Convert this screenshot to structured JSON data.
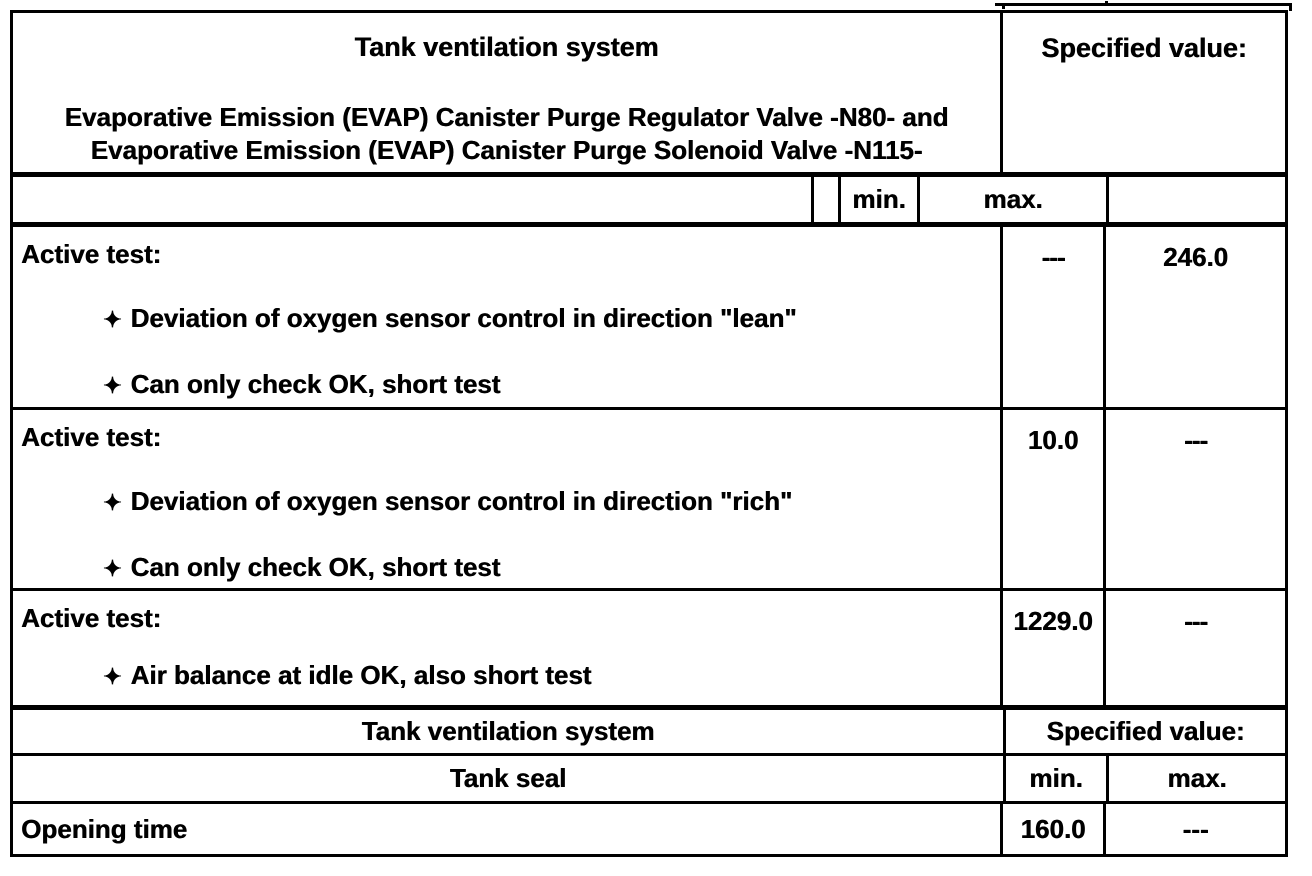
{
  "document": {
    "header": {
      "title": "Tank ventilation system",
      "subtitle_line1": "Evaporative Emission (EVAP) Canister Purge Regulator Valve -N80- and",
      "subtitle_line2": "Evaporative Emission (EVAP) Canister Purge Solenoid Valve -N115-",
      "specified_value_label": "Specified value:"
    },
    "columns": {
      "min_label": "min.",
      "max_label": "max."
    },
    "rows": [
      {
        "title": "Active test:",
        "bullets": [
          "Deviation of oxygen sensor control in direction \"lean\"",
          "Can only check OK, short test"
        ],
        "min": "---",
        "max": "246.0"
      },
      {
        "title": "Active test:",
        "bullets": [
          "Deviation of oxygen sensor control in direction \"rich\"",
          "Can only check OK, short test"
        ],
        "min": "10.0",
        "max": "---"
      },
      {
        "title": "Active test:",
        "bullets": [
          "Air balance at idle OK, also short test"
        ],
        "min": "1229.0",
        "max": "---"
      }
    ],
    "section2": {
      "title": "Tank ventilation system",
      "specified_value_label": "Specified value:",
      "subheader": "Tank seal",
      "min_label": "min.",
      "max_label": "max.",
      "row": {
        "label": "Opening time",
        "min": "160.0",
        "max": "---"
      }
    },
    "glyphs": {
      "bullet": "✦"
    },
    "colors": {
      "ink": "#000000",
      "paper": "#ffffff"
    }
  }
}
